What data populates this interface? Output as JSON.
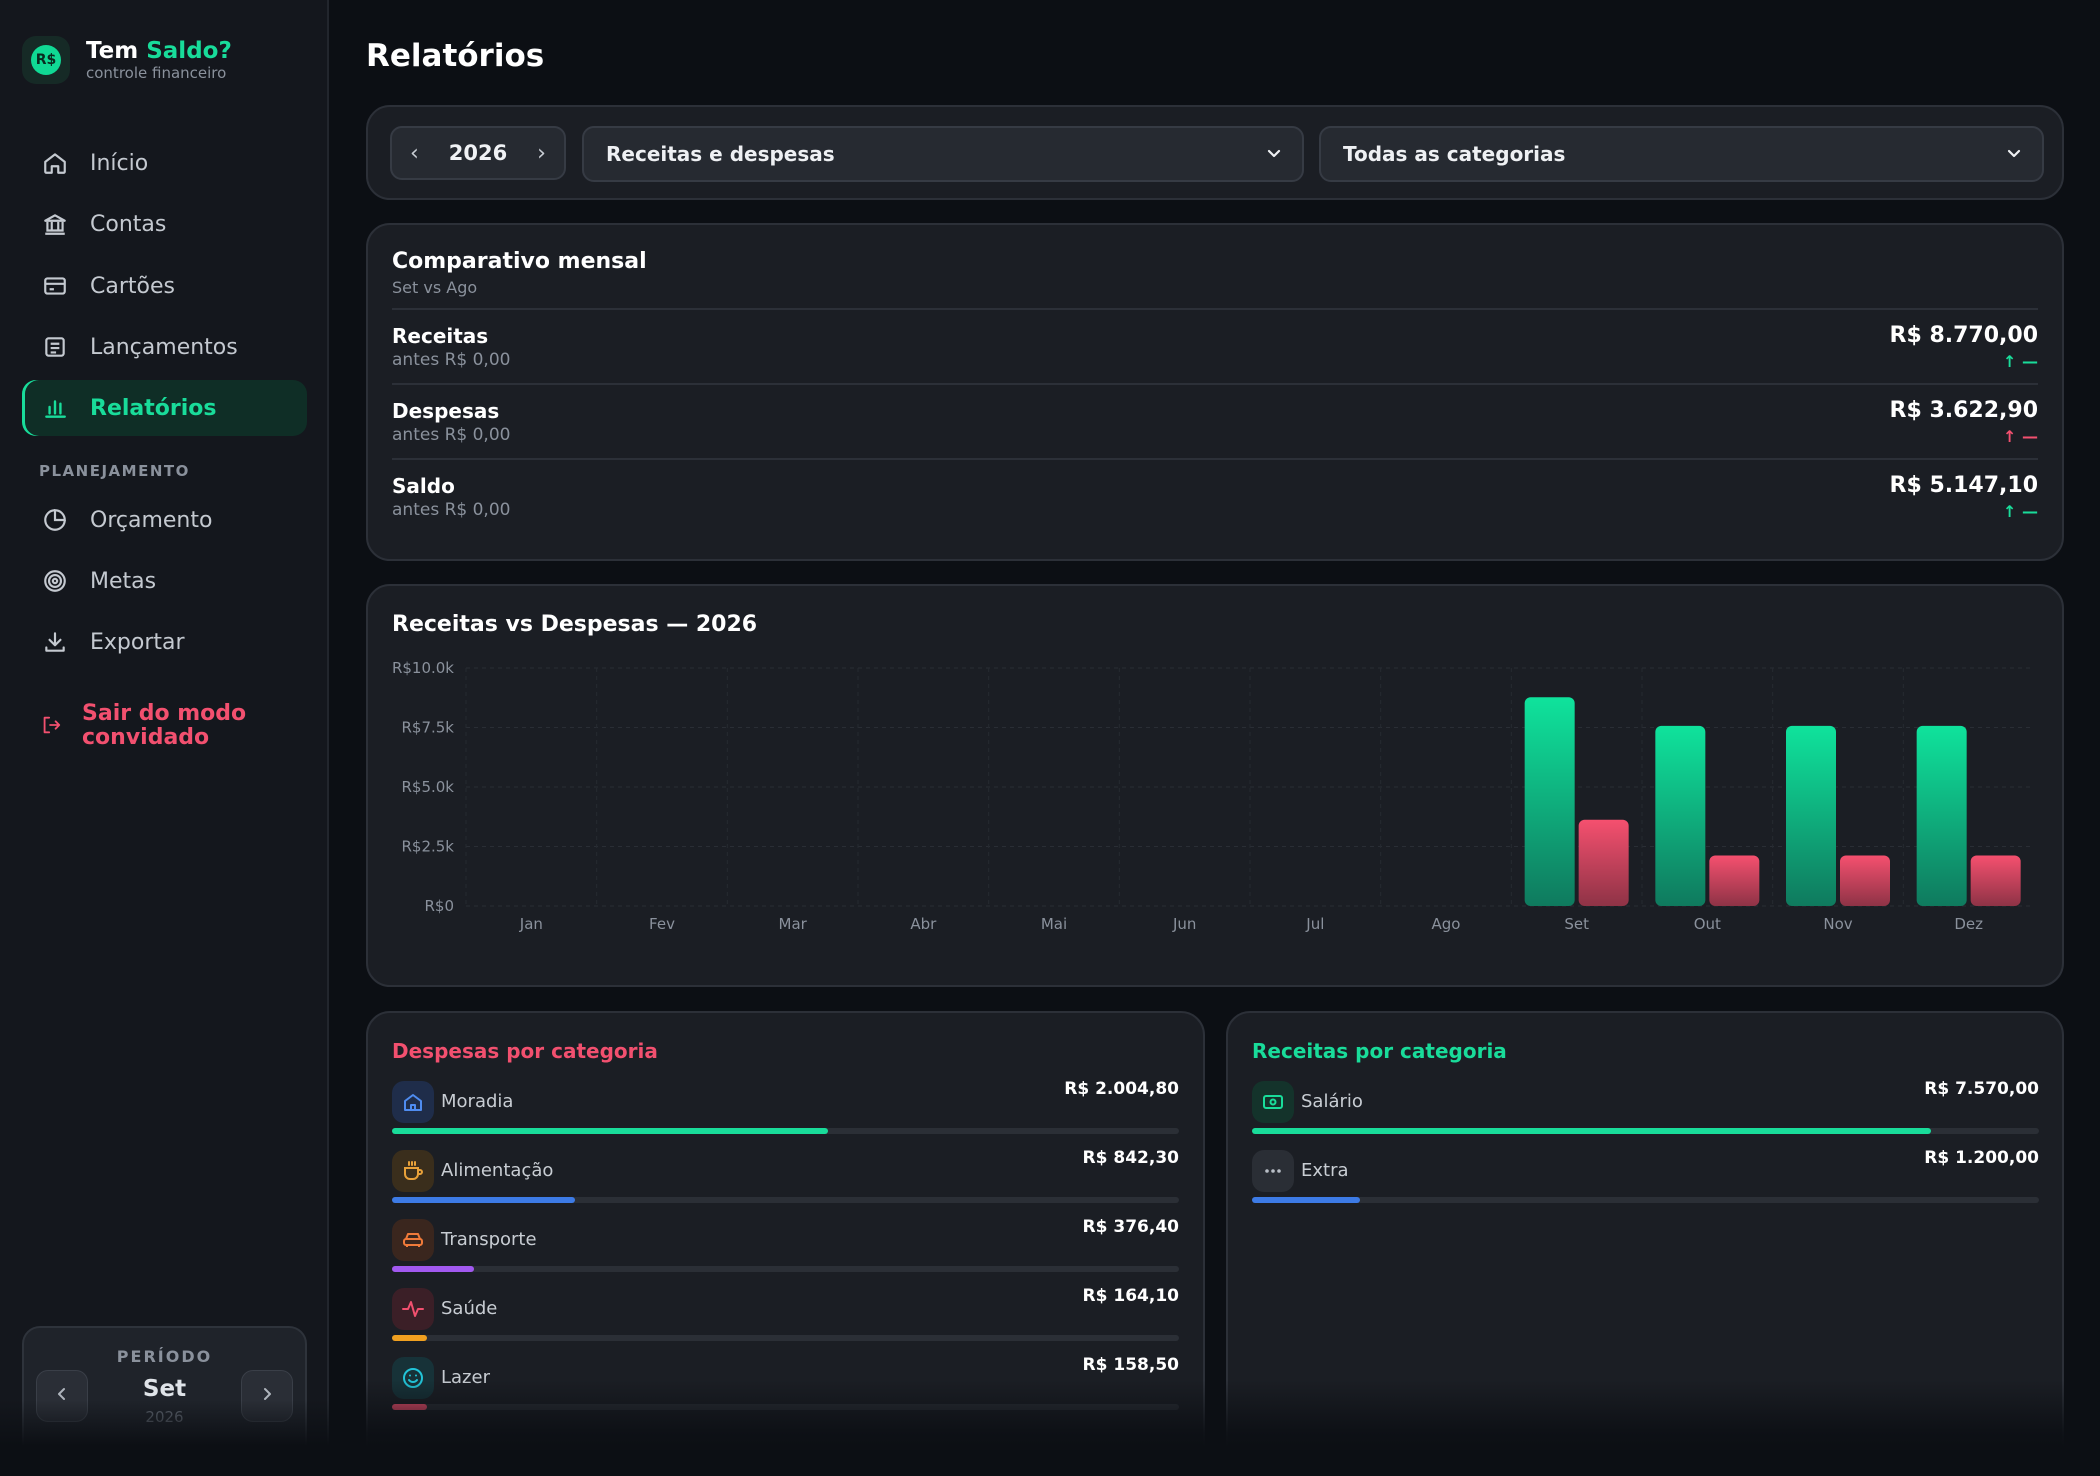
{
  "brand": {
    "title_part1": "Tem",
    "title_part2": "Saldo?",
    "subtitle": "controle financeiro",
    "logo_text": "R$"
  },
  "nav": {
    "items": [
      {
        "label": "Início",
        "icon": "home-icon"
      },
      {
        "label": "Contas",
        "icon": "bank-icon"
      },
      {
        "label": "Cartões",
        "icon": "card-icon"
      },
      {
        "label": "Lançamentos",
        "icon": "list-icon"
      },
      {
        "label": "Relatórios",
        "icon": "bar-chart-icon",
        "active": true
      }
    ],
    "section_label": "PLANEJAMENTO",
    "planning_items": [
      {
        "label": "Orçamento",
        "icon": "pie-icon"
      },
      {
        "label": "Metas",
        "icon": "target-icon"
      },
      {
        "label": "Exportar",
        "icon": "download-icon"
      }
    ],
    "logout_label": "Sair do modo convidado"
  },
  "period": {
    "label": "PERÍODO",
    "month": "Set",
    "year": "2026"
  },
  "page_title": "Relatórios",
  "filters": {
    "year": "2026",
    "type_select": "Receitas e despesas",
    "category_select": "Todas as categorias"
  },
  "comparativo": {
    "title": "Comparativo mensal",
    "subtitle": "Set vs Ago",
    "rows": [
      {
        "label": "Receitas",
        "previous": "antes R$ 0,00",
        "value": "R$ 8.770,00",
        "trend": "↑ —",
        "trend_color": "#19dc9a"
      },
      {
        "label": "Despesas",
        "previous": "antes R$ 0,00",
        "value": "R$ 3.622,90",
        "trend": "↑ —",
        "trend_color": "#f2506f"
      },
      {
        "label": "Saldo",
        "previous": "antes R$ 0,00",
        "value": "R$ 5.147,10",
        "trend": "↑ —",
        "trend_color": "#19dc9a"
      }
    ]
  },
  "chart_title": "Receitas vs Despesas — 2026",
  "chart_data": {
    "type": "bar",
    "title": "Receitas vs Despesas — 2026",
    "categories": [
      "Jan",
      "Fev",
      "Mar",
      "Abr",
      "Mai",
      "Jun",
      "Jul",
      "Ago",
      "Set",
      "Out",
      "Nov",
      "Dez"
    ],
    "series": [
      {
        "name": "Receitas",
        "color": "#0fd996",
        "values": [
          0,
          0,
          0,
          0,
          0,
          0,
          0,
          0,
          8770,
          7570,
          7570,
          7570
        ]
      },
      {
        "name": "Despesas",
        "color": "#f04d6d",
        "values": [
          0,
          0,
          0,
          0,
          0,
          0,
          0,
          0,
          3622.9,
          2120,
          2120,
          2120
        ]
      }
    ],
    "ylim": [
      0,
      10000
    ],
    "yticks": [
      0,
      2500,
      5000,
      7500,
      10000
    ],
    "ytick_labels": [
      "R$0",
      "R$2.5k",
      "R$5.0k",
      "R$7.5k",
      "R$10.0k"
    ],
    "grid": true
  },
  "despesas": {
    "title": "Despesas por categoria",
    "items": [
      {
        "name": "Moradia",
        "value": "R$ 2.004,80",
        "share": 0.554,
        "bar_color": "#19dc9a",
        "icon": "house-icon",
        "icon_color": "#4f8cf0",
        "icon_bg": "#1f2d4a"
      },
      {
        "name": "Alimentação",
        "value": "R$ 842,30",
        "share": 0.233,
        "bar_color": "#3d7be6",
        "icon": "coffee-icon",
        "icon_color": "#e8a13a",
        "icon_bg": "#3a2e1c"
      },
      {
        "name": "Transporte",
        "value": "R$ 376,40",
        "share": 0.104,
        "bar_color": "#a259f0",
        "icon": "car-icon",
        "icon_color": "#f07a3a",
        "icon_bg": "#3a261e"
      },
      {
        "name": "Saúde",
        "value": "R$ 164,10",
        "share": 0.045,
        "bar_color": "#f0a020",
        "icon": "heartbeat-icon",
        "icon_color": "#f2506f",
        "icon_bg": "#3b1f27"
      },
      {
        "name": "Lazer",
        "value": "R$ 158,50",
        "share": 0.044,
        "bar_color": "#f2506f",
        "icon": "smile-icon",
        "icon_color": "#22c4d8",
        "icon_bg": "#173238"
      }
    ]
  },
  "receitas": {
    "title": "Receitas por categoria",
    "items": [
      {
        "name": "Salário",
        "value": "R$ 7.570,00",
        "share": 0.863,
        "bar_color": "#19dc9a",
        "icon": "money-icon",
        "icon_color": "#19dc9a",
        "icon_bg": "#14332b"
      },
      {
        "name": "Extra",
        "value": "R$ 1.200,00",
        "share": 0.137,
        "bar_color": "#3d7be6",
        "icon": "dots-icon",
        "icon_color": "#b8bec6",
        "icon_bg": "#2a2e35"
      }
    ]
  },
  "colors": {
    "accent": "#19dc9a",
    "danger": "#f2506f",
    "bg": "#0c0f14",
    "card": "#1b1e24"
  }
}
